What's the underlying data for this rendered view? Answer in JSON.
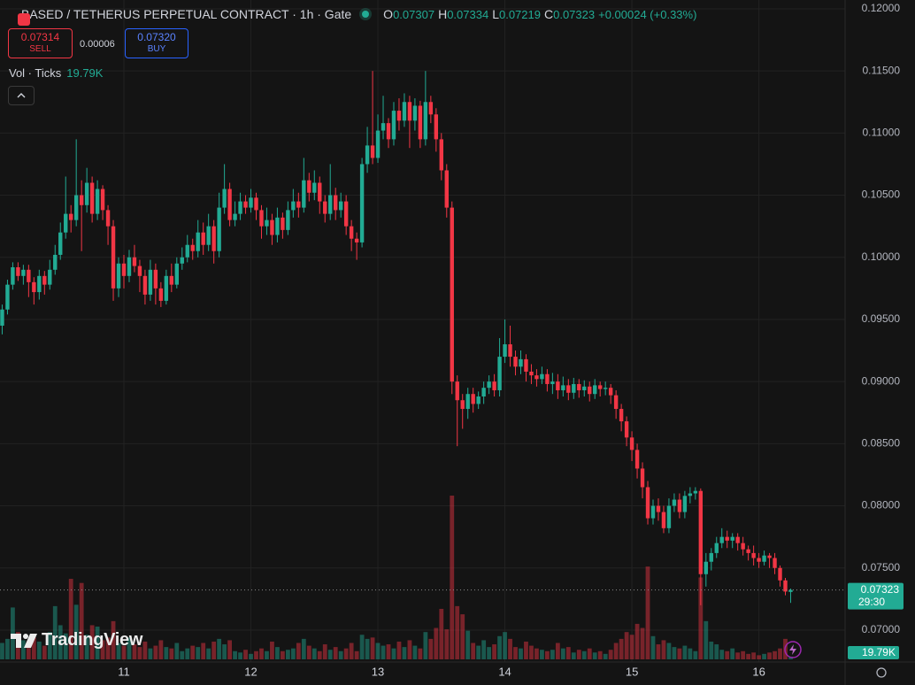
{
  "chart_data": {
    "type": "candlestick",
    "title": "BASED / TETHERUS PERPETUAL CONTRACT · 1h · Gate",
    "categories": [
      null,
      null,
      null,
      null,
      null,
      null,
      null,
      null,
      null,
      null,
      null,
      null,
      null,
      null,
      null,
      null,
      null,
      null,
      null,
      null,
      null,
      null,
      null,
      "11",
      null,
      null,
      null,
      null,
      null,
      null,
      null,
      null,
      null,
      null,
      null,
      null,
      null,
      null,
      null,
      null,
      null,
      null,
      null,
      null,
      null,
      null,
      null,
      "12",
      null,
      null,
      null,
      null,
      null,
      null,
      null,
      null,
      null,
      null,
      null,
      null,
      null,
      null,
      null,
      null,
      null,
      null,
      null,
      null,
      null,
      null,
      null,
      "13",
      null,
      null,
      null,
      null,
      null,
      null,
      null,
      null,
      null,
      null,
      null,
      null,
      null,
      null,
      null,
      null,
      null,
      null,
      null,
      null,
      null,
      null,
      null,
      "14",
      null,
      null,
      null,
      null,
      null,
      null,
      null,
      null,
      null,
      null,
      null,
      null,
      null,
      null,
      null,
      null,
      null,
      null,
      null,
      null,
      null,
      null,
      null,
      "15",
      null,
      null,
      null,
      null,
      null,
      null,
      null,
      null,
      null,
      null,
      null,
      null,
      null,
      null,
      null,
      null,
      null,
      null,
      null,
      null,
      null,
      null,
      null,
      "16",
      null,
      null,
      null,
      null,
      null,
      null
    ],
    "open": [
      0.0945,
      0.0958,
      0.0978,
      0.0992,
      0.0985,
      0.099,
      0.098,
      0.0972,
      0.0985,
      0.0978,
      0.099,
      0.1002,
      0.102,
      0.1035,
      0.103,
      0.105,
      0.1042,
      0.106,
      0.1035,
      0.1055,
      0.1038,
      0.1025,
      0.0975,
      0.0995,
      0.0985,
      0.1,
      0.0993,
      0.0985,
      0.097,
      0.099,
      0.0975,
      0.0965,
      0.0985,
      0.0978,
      0.0995,
      0.1,
      0.101,
      0.1005,
      0.102,
      0.101,
      0.1025,
      0.1005,
      0.104,
      0.1055,
      0.103,
      0.1035,
      0.1045,
      0.104,
      0.1048,
      0.1038,
      0.1025,
      0.103,
      0.1018,
      0.1032,
      0.1022,
      0.1038,
      0.1045,
      0.104,
      0.1062,
      0.1052,
      0.106,
      0.1045,
      0.1035,
      0.105,
      0.1038,
      0.1045,
      0.1025,
      0.1015,
      0.1012,
      0.1075,
      0.109,
      0.108,
      0.1102,
      0.1108,
      0.1095,
      0.1118,
      0.111,
      0.1125,
      0.111,
      0.1122,
      0.1095,
      0.1125,
      0.1115,
      0.1095,
      0.107,
      0.104,
      0.09,
      0.0885,
      0.0878,
      0.089,
      0.0882,
      0.0888,
      0.0895,
      0.09,
      0.0893,
      0.092,
      0.093,
      0.092,
      0.0912,
      0.0918,
      0.0908,
      0.0905,
      0.0902,
      0.0906,
      0.0898,
      0.09,
      0.0893,
      0.0897,
      0.0891,
      0.0898,
      0.0893,
      0.0896,
      0.089,
      0.0897,
      0.0894,
      0.0895,
      0.0889,
      0.0878,
      0.0868,
      0.0855,
      0.0845,
      0.083,
      0.0815,
      0.079,
      0.08,
      0.0795,
      0.0782,
      0.08,
      0.0805,
      0.0795,
      0.0808,
      0.081,
      0.0812,
      0.0745,
      0.0755,
      0.0762,
      0.077,
      0.0775,
      0.0772,
      0.0775,
      0.077,
      0.0765,
      0.0762,
      0.0758,
      0.0755,
      0.076,
      0.0758,
      0.075,
      0.074,
      0.07307
    ],
    "high": [
      0.0962,
      0.0982,
      0.0996,
      0.0996,
      0.0994,
      0.0994,
      0.0984,
      0.099,
      0.0989,
      0.0998,
      0.101,
      0.1028,
      0.1065,
      0.1042,
      0.1095,
      0.1062,
      0.1072,
      0.1065,
      0.1062,
      0.1058,
      0.1042,
      0.103,
      0.1,
      0.1002,
      0.1006,
      0.101,
      0.0998,
      0.099,
      0.0998,
      0.0995,
      0.098,
      0.099,
      0.0995,
      0.1,
      0.1008,
      0.1018,
      0.1015,
      0.103,
      0.1028,
      0.1035,
      0.103,
      0.1052,
      0.1075,
      0.106,
      0.1045,
      0.1052,
      0.105,
      0.1055,
      0.1052,
      0.1042,
      0.104,
      0.1035,
      0.104,
      0.1036,
      0.1045,
      0.1055,
      0.1052,
      0.108,
      0.1068,
      0.107,
      0.1065,
      0.105,
      0.1075,
      0.1056,
      0.1052,
      0.105,
      0.103,
      0.102,
      0.108,
      0.1105,
      0.115,
      0.1115,
      0.113,
      0.1112,
      0.1125,
      0.1128,
      0.1132,
      0.113,
      0.1128,
      0.1126,
      0.115,
      0.113,
      0.112,
      0.11,
      0.1075,
      0.1045,
      0.0905,
      0.089,
      0.0895,
      0.0895,
      0.0892,
      0.09,
      0.0905,
      0.0906,
      0.0935,
      0.095,
      0.0945,
      0.0925,
      0.0925,
      0.0922,
      0.0914,
      0.091,
      0.0912,
      0.091,
      0.0907,
      0.0906,
      0.0904,
      0.0902,
      0.0903,
      0.0902,
      0.0901,
      0.09,
      0.0902,
      0.09,
      0.09,
      0.0898,
      0.0893,
      0.0882,
      0.0872,
      0.086,
      0.085,
      0.0835,
      0.082,
      0.0805,
      0.0806,
      0.08,
      0.0806,
      0.081,
      0.081,
      0.0812,
      0.0815,
      0.0815,
      0.0814,
      0.0762,
      0.0766,
      0.0775,
      0.0782,
      0.078,
      0.0778,
      0.0778,
      0.0775,
      0.0768,
      0.0768,
      0.0762,
      0.0764,
      0.0762,
      0.0762,
      0.0752,
      0.0742,
      0.07334
    ],
    "low": [
      0.0938,
      0.0954,
      0.0974,
      0.0981,
      0.0978,
      0.0968,
      0.0962,
      0.0966,
      0.097,
      0.0974,
      0.0986,
      0.0998,
      0.1015,
      0.102,
      0.1025,
      0.1005,
      0.1036,
      0.1028,
      0.103,
      0.103,
      0.101,
      0.0965,
      0.0968,
      0.0975,
      0.098,
      0.0988,
      0.0972,
      0.0962,
      0.0965,
      0.0962,
      0.096,
      0.0962,
      0.0972,
      0.0975,
      0.099,
      0.0996,
      0.0998,
      0.1,
      0.1002,
      0.1005,
      0.0995,
      0.1,
      0.1035,
      0.1025,
      0.1025,
      0.103,
      0.1035,
      0.1036,
      0.103,
      0.1015,
      0.1018,
      0.101,
      0.1012,
      0.1015,
      0.1018,
      0.1032,
      0.1032,
      0.1036,
      0.1045,
      0.1046,
      0.1035,
      0.1028,
      0.103,
      0.103,
      0.1032,
      0.1018,
      0.1005,
      0.0998,
      0.1008,
      0.1068,
      0.1075,
      0.1076,
      0.1095,
      0.1088,
      0.109,
      0.1102,
      0.1105,
      0.1088,
      0.1102,
      0.1088,
      0.109,
      0.1108,
      0.1085,
      0.1062,
      0.1032,
      0.089,
      0.0848,
      0.0862,
      0.087,
      0.0875,
      0.0878,
      0.0882,
      0.089,
      0.0888,
      0.0888,
      0.0915,
      0.0912,
      0.0905,
      0.0906,
      0.09,
      0.0898,
      0.0896,
      0.0898,
      0.0892,
      0.089,
      0.0886,
      0.0888,
      0.0885,
      0.0886,
      0.0887,
      0.0888,
      0.0884,
      0.0886,
      0.0888,
      0.0889,
      0.0882,
      0.087,
      0.086,
      0.0848,
      0.0836,
      0.0822,
      0.0806,
      0.0785,
      0.0785,
      0.0788,
      0.0778,
      0.0778,
      0.0795,
      0.079,
      0.079,
      0.0802,
      0.0805,
      0.072,
      0.0735,
      0.0748,
      0.0758,
      0.0766,
      0.0766,
      0.0766,
      0.0764,
      0.076,
      0.0756,
      0.0752,
      0.075,
      0.0752,
      0.075,
      0.0745,
      0.0735,
      0.0728,
      0.07219
    ],
    "close": [
      0.0958,
      0.0978,
      0.0992,
      0.0985,
      0.099,
      0.098,
      0.0972,
      0.0985,
      0.0978,
      0.099,
      0.1002,
      0.102,
      0.1035,
      0.103,
      0.105,
      0.1042,
      0.106,
      0.1035,
      0.1055,
      0.1038,
      0.1025,
      0.0975,
      0.0995,
      0.0985,
      0.1,
      0.0993,
      0.0985,
      0.097,
      0.099,
      0.0975,
      0.0965,
      0.0985,
      0.0978,
      0.0995,
      0.1,
      0.101,
      0.1005,
      0.102,
      0.101,
      0.1025,
      0.1005,
      0.104,
      0.1055,
      0.103,
      0.1035,
      0.1045,
      0.104,
      0.1048,
      0.1038,
      0.1025,
      0.103,
      0.1018,
      0.1032,
      0.1022,
      0.1038,
      0.1045,
      0.104,
      0.1062,
      0.1052,
      0.106,
      0.1045,
      0.1035,
      0.105,
      0.1038,
      0.1045,
      0.1025,
      0.1015,
      0.1012,
      0.1075,
      0.109,
      0.108,
      0.1102,
      0.1108,
      0.1095,
      0.1118,
      0.111,
      0.1125,
      0.111,
      0.1122,
      0.1095,
      0.1125,
      0.1115,
      0.1095,
      0.107,
      0.104,
      0.09,
      0.0885,
      0.0878,
      0.089,
      0.0882,
      0.0888,
      0.0895,
      0.09,
      0.0893,
      0.092,
      0.093,
      0.092,
      0.0912,
      0.0918,
      0.0908,
      0.0905,
      0.0902,
      0.0906,
      0.0898,
      0.09,
      0.0893,
      0.0897,
      0.0891,
      0.0898,
      0.0893,
      0.0896,
      0.089,
      0.0897,
      0.0894,
      0.0895,
      0.0889,
      0.0878,
      0.0868,
      0.0855,
      0.0845,
      0.083,
      0.0815,
      0.079,
      0.08,
      0.0795,
      0.0782,
      0.08,
      0.0805,
      0.0795,
      0.0808,
      0.081,
      0.0812,
      0.0745,
      0.0755,
      0.0762,
      0.077,
      0.0775,
      0.0772,
      0.0775,
      0.077,
      0.0765,
      0.0762,
      0.0758,
      0.0755,
      0.076,
      0.0758,
      0.075,
      0.074,
      0.0731,
      0.07323
    ],
    "up_color": "#22ab94",
    "down_color": "#f23645",
    "volume": {
      "values": [
        120000,
        150000,
        380000,
        200000,
        140000,
        90000,
        160000,
        130000,
        100000,
        200000,
        390000,
        250000,
        190000,
        590000,
        400000,
        560000,
        180000,
        250000,
        240000,
        140000,
        160000,
        280000,
        120000,
        100000,
        160000,
        110000,
        90000,
        130000,
        80000,
        100000,
        140000,
        90000,
        80000,
        120000,
        60000,
        80000,
        100000,
        90000,
        120000,
        80000,
        130000,
        150000,
        110000,
        140000,
        60000,
        50000,
        70000,
        40000,
        60000,
        80000,
        60000,
        130000,
        90000,
        60000,
        70000,
        80000,
        120000,
        150000,
        100000,
        80000,
        60000,
        110000,
        70000,
        90000,
        60000,
        80000,
        120000,
        60000,
        180000,
        150000,
        160000,
        120000,
        100000,
        110000,
        80000,
        130000,
        90000,
        140000,
        100000,
        80000,
        200000,
        150000,
        230000,
        370000,
        220000,
        1200000,
        390000,
        330000,
        210000,
        120000,
        100000,
        140000,
        90000,
        110000,
        170000,
        200000,
        150000,
        90000,
        80000,
        130000,
        100000,
        80000,
        70000,
        60000,
        70000,
        120000,
        80000,
        90000,
        50000,
        70000,
        60000,
        80000,
        50000,
        60000,
        40000,
        70000,
        120000,
        150000,
        200000,
        180000,
        260000,
        230000,
        680000,
        170000,
        110000,
        140000,
        120000,
        90000,
        80000,
        100000,
        80000,
        60000,
        600000,
        280000,
        130000,
        110000,
        70000,
        60000,
        80000,
        50000,
        60000,
        40000,
        50000,
        30000,
        40000,
        50000,
        60000,
        80000,
        150000,
        19790
      ],
      "last_label": "19.79K"
    },
    "ylim": [
      0.06558,
      0.12071
    ],
    "yticks": [
      {
        "value": 0.07,
        "label": "0.07000"
      },
      {
        "value": 0.075,
        "label": "0.07500"
      },
      {
        "value": 0.08,
        "label": "0.08000"
      },
      {
        "value": 0.085,
        "label": "0.08500"
      },
      {
        "value": 0.09,
        "label": "0.09000"
      },
      {
        "value": 0.095,
        "label": "0.09500"
      },
      {
        "value": 0.1,
        "label": "0.10000"
      },
      {
        "value": 0.105,
        "label": "0.10500"
      },
      {
        "value": 0.11,
        "label": "0.11000"
      },
      {
        "value": 0.115,
        "label": "0.11500"
      },
      {
        "value": 0.12,
        "label": "0.12000"
      }
    ],
    "grid": true,
    "countdown": "29:30"
  },
  "header": {
    "o_key": "O",
    "o": "0.07307",
    "h_key": "H",
    "h": "0.07334",
    "l_key": "L",
    "l": "0.07219",
    "c_key": "C",
    "c": "0.07323",
    "change": "+0.00024 (+0.33%)",
    "sell_price": "0.07314",
    "sell_label": "SELL",
    "spread": "0.00006",
    "buy_price": "0.07320",
    "buy_label": "BUY",
    "volume_title": "Vol · Ticks",
    "brand": "TradingView"
  }
}
